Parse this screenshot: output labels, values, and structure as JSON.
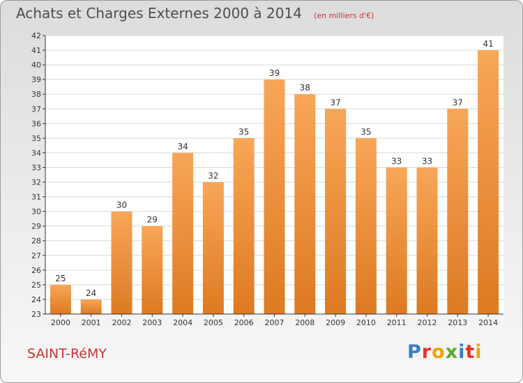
{
  "title": "Achats et Charges Externes 2000 à 2014",
  "units": "(en milliers d'€)",
  "commune": "SAINT-RéMY",
  "brand": {
    "text": "Proxiti",
    "letters": [
      {
        "ch": "P",
        "color": "#3a7fc1"
      },
      {
        "ch": "r",
        "color": "#e7332a"
      },
      {
        "ch": "o",
        "color": "#f0a30a"
      },
      {
        "ch": "x",
        "color": "#5aaa2d"
      },
      {
        "ch": "i",
        "color": "#3a7fc1"
      },
      {
        "ch": "t",
        "color": "#e7332a"
      },
      {
        "ch": "i",
        "color": "#f0a30a"
      }
    ]
  },
  "colors": {
    "bar_top": "#f8a658",
    "bar_bottom": "#dd7a22",
    "plot_bg": "#ffffff",
    "grid": "#d9d9d9",
    "axis": "#333333",
    "title": "#4d4d4d",
    "accent": "#cc3333"
  },
  "chart_data": {
    "type": "bar",
    "title": "Achats et Charges Externes 2000 à 2014",
    "subtitle": "(en milliers d'€)",
    "xlabel": "",
    "ylabel": "",
    "categories": [
      "2000",
      "2001",
      "2002",
      "2003",
      "2004",
      "2005",
      "2006",
      "2007",
      "2008",
      "2009",
      "2010",
      "2011",
      "2012",
      "2013",
      "2014"
    ],
    "values": [
      25,
      24,
      30,
      29,
      34,
      32,
      35,
      39,
      38,
      37,
      35,
      33,
      33,
      37,
      41
    ],
    "ylim": [
      23,
      42
    ],
    "yticks": [
      23,
      24,
      25,
      26,
      27,
      28,
      29,
      30,
      31,
      32,
      33,
      34,
      35,
      36,
      37,
      38,
      39,
      40,
      41,
      42
    ],
    "grid": true,
    "legend": "none",
    "data_labels": true
  }
}
